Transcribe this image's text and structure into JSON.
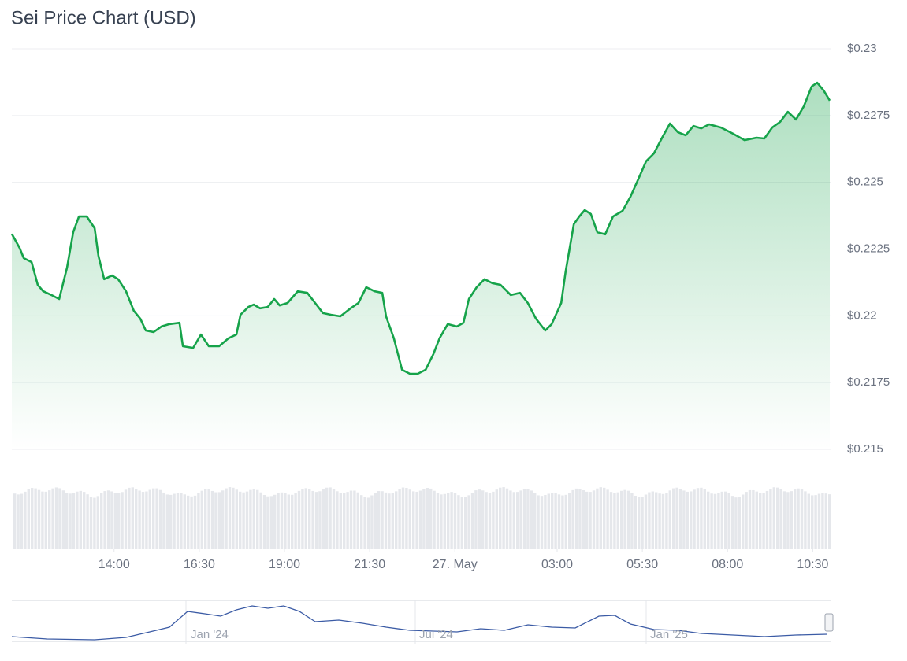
{
  "chart_data": {
    "type": "area-line",
    "title": "Sei Price Chart (USD)",
    "color": "#16a34a",
    "grid": true,
    "xlim": [
      11,
      35
    ],
    "ylim": [
      0.215,
      0.23
    ],
    "xticks": [
      {
        "value": 14,
        "label": "14:00"
      },
      {
        "value": 16.5,
        "label": "16:30"
      },
      {
        "value": 19,
        "label": "19:00"
      },
      {
        "value": 21.5,
        "label": "21:30"
      },
      {
        "value": 24,
        "label": "27. May"
      },
      {
        "value": 27,
        "label": "03:00"
      },
      {
        "value": 29.5,
        "label": "05:30"
      },
      {
        "value": 32,
        "label": "08:00"
      },
      {
        "value": 34.5,
        "label": "10:30"
      }
    ],
    "yticks": [
      {
        "value": 0.215,
        "label": "$0.215"
      },
      {
        "value": 0.2175,
        "label": "$0.2175"
      },
      {
        "value": 0.22,
        "label": "$0.22"
      },
      {
        "value": 0.2225,
        "label": "$0.2225"
      },
      {
        "value": 0.225,
        "label": "$0.225"
      },
      {
        "value": 0.2275,
        "label": "$0.2275"
      },
      {
        "value": 0.23,
        "label": "$0.23"
      }
    ],
    "x": [
      11,
      11.23,
      11.35,
      11.58,
      11.76,
      11.92,
      12.16,
      12.39,
      12.62,
      12.8,
      12.97,
      13.2,
      13.43,
      13.54,
      13.71,
      13.94,
      14.12,
      14.35,
      14.58,
      14.77,
      14.93,
      15.16,
      15.39,
      15.62,
      15.92,
      16.02,
      16.32,
      16.55,
      16.78,
      17.08,
      17.36,
      17.59,
      17.71,
      17.94,
      18.1,
      18.28,
      18.51,
      18.7,
      18.86,
      19.09,
      19.39,
      19.67,
      19.9,
      20.13,
      20.36,
      20.64,
      20.94,
      21.17,
      21.4,
      21.64,
      21.87,
      21.98,
      22.21,
      22.45,
      22.68,
      22.91,
      23.14,
      23.37,
      23.55,
      23.79,
      24.06,
      24.25,
      24.41,
      24.64,
      24.87,
      25.1,
      25.34,
      25.64,
      25.91,
      26.14,
      26.38,
      26.65,
      26.84,
      27.12,
      27.25,
      27.49,
      27.65,
      27.81,
      27.99,
      28.18,
      28.41,
      28.64,
      28.92,
      29.15,
      29.38,
      29.61,
      29.84,
      30.08,
      30.31,
      30.54,
      30.77,
      31,
      31.23,
      31.46,
      31.81,
      32.16,
      32.5,
      32.85,
      33.08,
      33.31,
      33.54,
      33.77,
      34.01,
      34.24,
      34.47,
      34.63,
      34.82,
      35
    ],
    "values": [
      0.22307,
      0.22254,
      0.22216,
      0.22201,
      0.22116,
      0.22092,
      0.22078,
      0.22063,
      0.22181,
      0.22313,
      0.22372,
      0.22372,
      0.22328,
      0.22225,
      0.22137,
      0.22151,
      0.22137,
      0.22092,
      0.22019,
      0.21989,
      0.21945,
      0.21939,
      0.2196,
      0.21969,
      0.21974,
      0.21886,
      0.2188,
      0.2193,
      0.21886,
      0.21886,
      0.21916,
      0.2193,
      0.22004,
      0.22033,
      0.22042,
      0.22028,
      0.22033,
      0.22063,
      0.22039,
      0.22048,
      0.22092,
      0.22086,
      0.22048,
      0.2201,
      0.22004,
      0.21998,
      0.22028,
      0.22048,
      0.22107,
      0.22092,
      0.22086,
      0.21998,
      0.21916,
      0.21798,
      0.21783,
      0.21783,
      0.21798,
      0.21857,
      0.21916,
      0.21969,
      0.2196,
      0.21974,
      0.22063,
      0.22107,
      0.22137,
      0.22122,
      0.22116,
      0.22078,
      0.22086,
      0.22048,
      0.21989,
      0.21945,
      0.21969,
      0.22048,
      0.22166,
      0.22343,
      0.22372,
      0.22396,
      0.22381,
      0.22313,
      0.22305,
      0.22372,
      0.22393,
      0.22446,
      0.22511,
      0.22579,
      0.22608,
      0.22667,
      0.2272,
      0.22688,
      0.22676,
      0.22711,
      0.22702,
      0.22717,
      0.22705,
      0.22682,
      0.22658,
      0.22667,
      0.22664,
      0.22705,
      0.22726,
      0.22764,
      0.22735,
      0.22785,
      0.22859,
      0.22873,
      0.22844,
      0.22806
    ],
    "navigator_labels": [
      "Jan '24",
      "Jul '24",
      "Jan '25"
    ]
  }
}
